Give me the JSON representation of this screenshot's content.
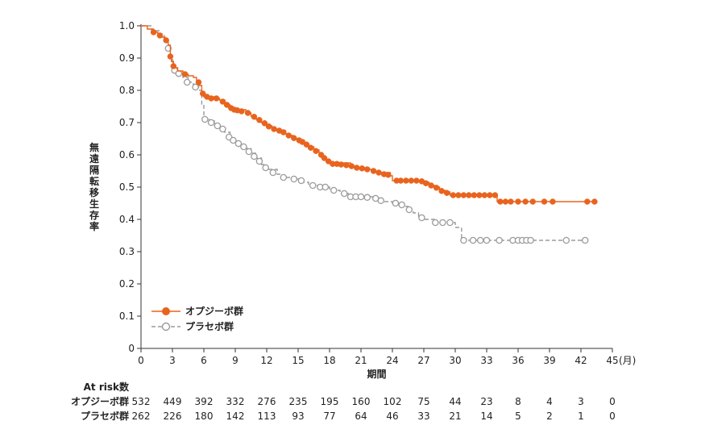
{
  "chart_data": {
    "type": "line",
    "ylabel": "無遠隔転移生存率",
    "xlabel": "期間",
    "x_unit": "(月)",
    "xlim": [
      0,
      45
    ],
    "ylim": [
      0,
      1.0
    ],
    "xticks": [
      "0",
      "3",
      "6",
      "9",
      "12",
      "15",
      "18",
      "21",
      "24",
      "27",
      "30",
      "33",
      "36",
      "39",
      "42",
      "45"
    ],
    "yticks": [
      "0",
      "0.1",
      "0.2",
      "0.3",
      "0.4",
      "0.5",
      "0.6",
      "0.7",
      "0.8",
      "0.9",
      "1.0"
    ],
    "legend_position": "bottom-left",
    "colors": {
      "opdivo": "#E8641E",
      "placebo": "#9B9B9B"
    },
    "series": [
      {
        "name": "オプジーボ群",
        "key": "opdivo",
        "step": [
          [
            0,
            1.0
          ],
          [
            0.6,
            0.99
          ],
          [
            1.2,
            0.98
          ],
          [
            1.6,
            0.975
          ],
          [
            2,
            0.965
          ],
          [
            2.3,
            0.955
          ],
          [
            2.6,
            0.94
          ],
          [
            2.8,
            0.91
          ],
          [
            2.9,
            0.89
          ],
          [
            3.1,
            0.87
          ],
          [
            3.5,
            0.86
          ],
          [
            4,
            0.85
          ],
          [
            4.5,
            0.845
          ],
          [
            5,
            0.84
          ],
          [
            5.3,
            0.83
          ],
          [
            5.6,
            0.815
          ],
          [
            5.8,
            0.795
          ],
          [
            6,
            0.78
          ],
          [
            7,
            0.775
          ],
          [
            7.5,
            0.77
          ],
          [
            8,
            0.755
          ],
          [
            8.5,
            0.745
          ],
          [
            9,
            0.74
          ],
          [
            10,
            0.73
          ],
          [
            10.5,
            0.72
          ],
          [
            11,
            0.71
          ],
          [
            11.5,
            0.7
          ],
          [
            12,
            0.69
          ],
          [
            12.5,
            0.68
          ],
          [
            13,
            0.675
          ],
          [
            13.8,
            0.665
          ],
          [
            14,
            0.66
          ],
          [
            14.5,
            0.65
          ],
          [
            15.2,
            0.645
          ],
          [
            15.6,
            0.635
          ],
          [
            16,
            0.625
          ],
          [
            16.5,
            0.615
          ],
          [
            17,
            0.605
          ],
          [
            17.3,
            0.595
          ],
          [
            17.6,
            0.585
          ],
          [
            18,
            0.575
          ],
          [
            20,
            0.565
          ],
          [
            20.5,
            0.56
          ],
          [
            21.5,
            0.555
          ],
          [
            22,
            0.55
          ],
          [
            22.5,
            0.545
          ],
          [
            23.8,
            0.535
          ],
          [
            24,
            0.52
          ],
          [
            27,
            0.515
          ],
          [
            27.5,
            0.505
          ],
          [
            28,
            0.5
          ],
          [
            28.5,
            0.49
          ],
          [
            29,
            0.485
          ],
          [
            29.5,
            0.475
          ],
          [
            34,
            0.455
          ],
          [
            43.5,
            0.455
          ]
        ],
        "censor": [
          [
            1.2,
            0.98
          ],
          [
            1.8,
            0.97
          ],
          [
            2.4,
            0.955
          ],
          [
            2.8,
            0.905
          ],
          [
            3.1,
            0.875
          ],
          [
            4.2,
            0.85
          ],
          [
            5.5,
            0.825
          ],
          [
            5.9,
            0.79
          ],
          [
            6.3,
            0.78
          ],
          [
            6.7,
            0.775
          ],
          [
            7.2,
            0.775
          ],
          [
            7.8,
            0.765
          ],
          [
            8.2,
            0.755
          ],
          [
            8.6,
            0.745
          ],
          [
            8.9,
            0.74
          ],
          [
            9.2,
            0.738
          ],
          [
            9.6,
            0.735
          ],
          [
            10.2,
            0.73
          ],
          [
            10.8,
            0.718
          ],
          [
            11.3,
            0.708
          ],
          [
            11.8,
            0.698
          ],
          [
            12.2,
            0.688
          ],
          [
            12.7,
            0.68
          ],
          [
            13.2,
            0.675
          ],
          [
            13.6,
            0.67
          ],
          [
            14.1,
            0.66
          ],
          [
            14.6,
            0.652
          ],
          [
            15.1,
            0.645
          ],
          [
            15.4,
            0.64
          ],
          [
            15.8,
            0.632
          ],
          [
            16.2,
            0.622
          ],
          [
            16.7,
            0.612
          ],
          [
            17.2,
            0.6
          ],
          [
            17.5,
            0.59
          ],
          [
            17.9,
            0.58
          ],
          [
            18.3,
            0.572
          ],
          [
            18.7,
            0.572
          ],
          [
            19.1,
            0.57
          ],
          [
            19.6,
            0.568
          ],
          [
            20.1,
            0.565
          ],
          [
            20.6,
            0.56
          ],
          [
            21.1,
            0.558
          ],
          [
            21.6,
            0.555
          ],
          [
            22.2,
            0.55
          ],
          [
            22.7,
            0.545
          ],
          [
            23.2,
            0.54
          ],
          [
            23.6,
            0.538
          ],
          [
            24.4,
            0.52
          ],
          [
            24.8,
            0.52
          ],
          [
            25.3,
            0.52
          ],
          [
            25.8,
            0.52
          ],
          [
            26.3,
            0.52
          ],
          [
            26.8,
            0.518
          ],
          [
            27.2,
            0.512
          ],
          [
            27.7,
            0.505
          ],
          [
            28.2,
            0.498
          ],
          [
            28.7,
            0.488
          ],
          [
            29.2,
            0.482
          ],
          [
            29.8,
            0.475
          ],
          [
            30.3,
            0.475
          ],
          [
            30.8,
            0.475
          ],
          [
            31.3,
            0.475
          ],
          [
            31.8,
            0.475
          ],
          [
            32.3,
            0.475
          ],
          [
            32.8,
            0.475
          ],
          [
            33.3,
            0.475
          ],
          [
            33.8,
            0.475
          ],
          [
            34.3,
            0.455
          ],
          [
            34.8,
            0.455
          ],
          [
            35.3,
            0.455
          ],
          [
            36.0,
            0.455
          ],
          [
            36.7,
            0.455
          ],
          [
            37.4,
            0.455
          ],
          [
            38.5,
            0.455
          ],
          [
            39.3,
            0.455
          ],
          [
            42.6,
            0.455
          ],
          [
            43.3,
            0.455
          ]
        ]
      },
      {
        "name": "プラセボ群",
        "key": "placebo",
        "step": [
          [
            0,
            1.0
          ],
          [
            1,
            0.985
          ],
          [
            1.8,
            0.97
          ],
          [
            2.2,
            0.955
          ],
          [
            2.6,
            0.93
          ],
          [
            2.8,
            0.9
          ],
          [
            3,
            0.865
          ],
          [
            3.5,
            0.855
          ],
          [
            4,
            0.84
          ],
          [
            4.5,
            0.825
          ],
          [
            5,
            0.815
          ],
          [
            5.5,
            0.8
          ],
          [
            5.8,
            0.755
          ],
          [
            6,
            0.71
          ],
          [
            6.5,
            0.705
          ],
          [
            7,
            0.695
          ],
          [
            7.5,
            0.685
          ],
          [
            8,
            0.67
          ],
          [
            8.5,
            0.65
          ],
          [
            9,
            0.64
          ],
          [
            9.5,
            0.63
          ],
          [
            10,
            0.62
          ],
          [
            10.5,
            0.605
          ],
          [
            11,
            0.59
          ],
          [
            11.5,
            0.57
          ],
          [
            12,
            0.555
          ],
          [
            13,
            0.54
          ],
          [
            13.5,
            0.53
          ],
          [
            14.5,
            0.525
          ],
          [
            15.5,
            0.515
          ],
          [
            16,
            0.505
          ],
          [
            17,
            0.5
          ],
          [
            18,
            0.49
          ],
          [
            19,
            0.48
          ],
          [
            19.8,
            0.47
          ],
          [
            22.5,
            0.465
          ],
          [
            23,
            0.455
          ],
          [
            24,
            0.45
          ],
          [
            25,
            0.44
          ],
          [
            25.5,
            0.43
          ],
          [
            26,
            0.42
          ],
          [
            26.5,
            0.41
          ],
          [
            27,
            0.4
          ],
          [
            28,
            0.39
          ],
          [
            30,
            0.375
          ],
          [
            30.6,
            0.335
          ],
          [
            42.5,
            0.335
          ]
        ],
        "censor": [
          [
            2.6,
            0.93
          ],
          [
            3.2,
            0.862
          ],
          [
            3.6,
            0.852
          ],
          [
            4.4,
            0.825
          ],
          [
            5.2,
            0.81
          ],
          [
            6.1,
            0.71
          ],
          [
            6.7,
            0.7
          ],
          [
            7.3,
            0.69
          ],
          [
            7.8,
            0.68
          ],
          [
            8.4,
            0.655
          ],
          [
            8.8,
            0.645
          ],
          [
            9.3,
            0.635
          ],
          [
            9.8,
            0.625
          ],
          [
            10.3,
            0.61
          ],
          [
            10.8,
            0.595
          ],
          [
            11.3,
            0.58
          ],
          [
            11.9,
            0.56
          ],
          [
            12.6,
            0.545
          ],
          [
            13.6,
            0.53
          ],
          [
            14.6,
            0.525
          ],
          [
            15.3,
            0.52
          ],
          [
            16.4,
            0.505
          ],
          [
            17.1,
            0.5
          ],
          [
            17.6,
            0.5
          ],
          [
            18.4,
            0.49
          ],
          [
            19.4,
            0.48
          ],
          [
            20.0,
            0.47
          ],
          [
            20.5,
            0.47
          ],
          [
            21.0,
            0.47
          ],
          [
            21.6,
            0.468
          ],
          [
            22.4,
            0.465
          ],
          [
            22.9,
            0.458
          ],
          [
            24.3,
            0.45
          ],
          [
            24.9,
            0.445
          ],
          [
            25.6,
            0.43
          ],
          [
            26.8,
            0.405
          ],
          [
            28.1,
            0.39
          ],
          [
            28.8,
            0.39
          ],
          [
            29.5,
            0.39
          ],
          [
            30.8,
            0.335
          ],
          [
            31.7,
            0.335
          ],
          [
            32.4,
            0.335
          ],
          [
            33.0,
            0.335
          ],
          [
            34.2,
            0.335
          ],
          [
            35.5,
            0.335
          ],
          [
            36.0,
            0.335
          ],
          [
            36.4,
            0.335
          ],
          [
            36.8,
            0.335
          ],
          [
            37.2,
            0.335
          ],
          [
            40.6,
            0.335
          ],
          [
            42.4,
            0.335
          ]
        ]
      }
    ],
    "at_risk": {
      "title": "At risk数",
      "rows": [
        {
          "label": "オプジーボ群",
          "values": [
            "532",
            "449",
            "392",
            "332",
            "276",
            "235",
            "195",
            "160",
            "102",
            "75",
            "44",
            "23",
            "8",
            "4",
            "3",
            "0"
          ]
        },
        {
          "label": "プラセボ群",
          "values": [
            "262",
            "226",
            "180",
            "142",
            "113",
            "93",
            "77",
            "64",
            "46",
            "33",
            "21",
            "14",
            "5",
            "2",
            "1",
            "0"
          ]
        }
      ]
    }
  }
}
